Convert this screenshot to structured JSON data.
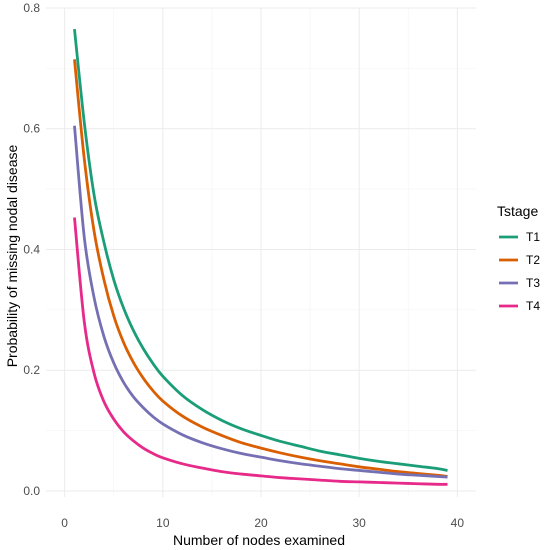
{
  "chart_data": {
    "type": "line",
    "title": "",
    "xlabel": "Number of nodes examined",
    "ylabel": "Probability of missing nodal disease",
    "xlim": [
      -1.9,
      41.9
    ],
    "ylim": [
      -0.01,
      0.8
    ],
    "x_ticks": [
      0,
      10,
      20,
      30,
      40
    ],
    "x_tick_labels": [
      "0",
      "10",
      "20",
      "30",
      "40"
    ],
    "y_ticks": [
      0.0,
      0.2,
      0.4,
      0.6,
      0.8
    ],
    "y_tick_labels": [
      "0.0",
      "0.2",
      "0.4",
      "0.6",
      "0.8"
    ],
    "grid": true,
    "legend": {
      "title": "Tstage",
      "position": "right"
    },
    "x": [
      1,
      2,
      3,
      4,
      5,
      6,
      7,
      8,
      9,
      10,
      12,
      14,
      16,
      18,
      20,
      22,
      24,
      26,
      28,
      30,
      32,
      34,
      36,
      38,
      39
    ],
    "series": [
      {
        "name": "T1",
        "color": "#1b9e77",
        "values": [
          0.765,
          0.61,
          0.49,
          0.412,
          0.35,
          0.303,
          0.266,
          0.236,
          0.211,
          0.19,
          0.158,
          0.135,
          0.117,
          0.103,
          0.092,
          0.082,
          0.074,
          0.066,
          0.06,
          0.054,
          0.049,
          0.045,
          0.041,
          0.037,
          0.034
        ]
      },
      {
        "name": "T2",
        "color": "#d95f02",
        "values": [
          0.715,
          0.55,
          0.43,
          0.35,
          0.29,
          0.246,
          0.213,
          0.187,
          0.166,
          0.149,
          0.124,
          0.106,
          0.092,
          0.08,
          0.071,
          0.063,
          0.056,
          0.05,
          0.045,
          0.04,
          0.036,
          0.032,
          0.029,
          0.026,
          0.024
        ]
      },
      {
        "name": "T3",
        "color": "#7570b3",
        "values": [
          0.605,
          0.42,
          0.32,
          0.256,
          0.212,
          0.18,
          0.156,
          0.138,
          0.123,
          0.111,
          0.093,
          0.08,
          0.07,
          0.062,
          0.056,
          0.05,
          0.045,
          0.041,
          0.037,
          0.034,
          0.031,
          0.028,
          0.026,
          0.024,
          0.023
        ]
      },
      {
        "name": "T4",
        "color": "#e7298a",
        "values": [
          0.453,
          0.28,
          0.195,
          0.148,
          0.119,
          0.098,
          0.083,
          0.071,
          0.062,
          0.055,
          0.045,
          0.038,
          0.032,
          0.028,
          0.025,
          0.022,
          0.02,
          0.018,
          0.016,
          0.015,
          0.014,
          0.013,
          0.012,
          0.011,
          0.011
        ]
      }
    ]
  }
}
